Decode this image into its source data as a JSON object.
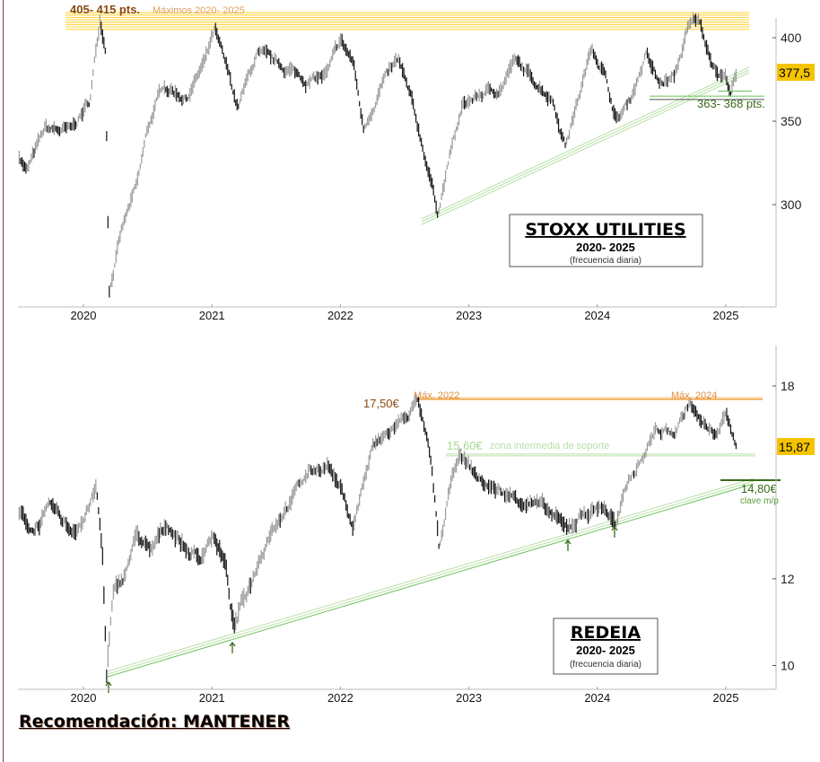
{
  "recommendation": "Recomendación: MANTENER",
  "chart_data": [
    {
      "type": "line",
      "title": "STOXX UTILITIES",
      "subtitle": "2020- 2025",
      "note": "(frecuencia diaria)",
      "x_ticks": [
        "2020",
        "2021",
        "2022",
        "2023",
        "2024",
        "2025"
      ],
      "y_ticks": [
        "400",
        "350",
        "300"
      ],
      "y_tick_values": [
        400,
        350,
        300
      ],
      "scale": "linear",
      "last_value_label": "377,5",
      "last_value": 377.5,
      "annotations": {
        "resistance_label": "405- 415 pts.",
        "resistance_note": "Máximos 2020- 2025",
        "resistance_range": [
          405,
          415
        ],
        "support_label": "363- 368 pts.",
        "support_range": [
          363,
          368
        ]
      },
      "series_waypoints": [
        [
          2019.5,
          330
        ],
        [
          2019.56,
          320
        ],
        [
          2019.7,
          345
        ],
        [
          2019.9,
          344
        ],
        [
          2020.05,
          362
        ],
        [
          2020.13,
          412
        ],
        [
          2020.17,
          395
        ],
        [
          2020.2,
          250
        ],
        [
          2020.3,
          285
        ],
        [
          2020.42,
          312
        ],
        [
          2020.5,
          345
        ],
        [
          2020.62,
          372
        ],
        [
          2020.8,
          364
        ],
        [
          2020.95,
          386
        ],
        [
          2021.02,
          404
        ],
        [
          2021.15,
          372
        ],
        [
          2021.2,
          358
        ],
        [
          2021.35,
          390
        ],
        [
          2021.5,
          384
        ],
        [
          2021.62,
          380
        ],
        [
          2021.75,
          374
        ],
        [
          2021.9,
          378
        ],
        [
          2022.0,
          398
        ],
        [
          2022.1,
          385
        ],
        [
          2022.18,
          345
        ],
        [
          2022.32,
          372
        ],
        [
          2022.45,
          386
        ],
        [
          2022.55,
          362
        ],
        [
          2022.65,
          332
        ],
        [
          2022.76,
          296
        ],
        [
          2022.86,
          332
        ],
        [
          2022.96,
          360
        ],
        [
          2023.1,
          366
        ],
        [
          2023.25,
          370
        ],
        [
          2023.35,
          386
        ],
        [
          2023.5,
          375
        ],
        [
          2023.65,
          364
        ],
        [
          2023.75,
          336
        ],
        [
          2023.86,
          366
        ],
        [
          2023.96,
          395
        ],
        [
          2024.05,
          380
        ],
        [
          2024.15,
          350
        ],
        [
          2024.25,
          362
        ],
        [
          2024.38,
          390
        ],
        [
          2024.48,
          372
        ],
        [
          2024.6,
          376
        ],
        [
          2024.7,
          404
        ],
        [
          2024.78,
          412
        ],
        [
          2024.86,
          394
        ],
        [
          2024.93,
          380
        ],
        [
          2025.0,
          376
        ],
        [
          2025.04,
          368
        ],
        [
          2025.08,
          377.5
        ]
      ]
    },
    {
      "type": "line",
      "title": "REDEIA",
      "subtitle": "2020- 2025",
      "note": "(frecuencia diaria)",
      "x_ticks": [
        "2020",
        "2021",
        "2022",
        "2023",
        "2024",
        "2025"
      ],
      "y_ticks": [
        "18",
        "12",
        "10"
      ],
      "y_tick_values": [
        18,
        12,
        10
      ],
      "scale": "log",
      "last_value_label": "15,87",
      "last_value": 15.87,
      "annotations": {
        "resistance_label": "17,50€",
        "resistance_value": 17.5,
        "max_2022_label": "Máx. 2022",
        "max_2024_label": "Máx. 2024",
        "support_mid_label": "15,60€",
        "support_mid_note": "zona intermedia de soporte",
        "support_mid_value": 15.6,
        "key_support_label": "14,80€",
        "key_support_note": "clave m/p",
        "key_support_value": 14.8
      },
      "series_waypoints": [
        [
          2019.5,
          13.8
        ],
        [
          2019.6,
          13.3
        ],
        [
          2019.75,
          13.9
        ],
        [
          2019.9,
          13.3
        ],
        [
          2020.0,
          13.6
        ],
        [
          2020.1,
          14.5
        ],
        [
          2020.15,
          12.5
        ],
        [
          2020.18,
          9.8
        ],
        [
          2020.23,
          11.5
        ],
        [
          2020.32,
          12.1
        ],
        [
          2020.42,
          13.2
        ],
        [
          2020.52,
          12.6
        ],
        [
          2020.65,
          13.5
        ],
        [
          2020.8,
          12.8
        ],
        [
          2020.9,
          12.5
        ],
        [
          2021.0,
          13.2
        ],
        [
          2021.1,
          12.4
        ],
        [
          2021.17,
          10.8
        ],
        [
          2021.3,
          11.9
        ],
        [
          2021.45,
          13.3
        ],
        [
          2021.6,
          14.1
        ],
        [
          2021.75,
          15.0
        ],
        [
          2021.9,
          15.3
        ],
        [
          2022.0,
          14.5
        ],
        [
          2022.1,
          13.4
        ],
        [
          2022.25,
          15.8
        ],
        [
          2022.4,
          16.4
        ],
        [
          2022.53,
          17.0
        ],
        [
          2022.6,
          17.5
        ],
        [
          2022.7,
          15.4
        ],
        [
          2022.77,
          12.7
        ],
        [
          2022.85,
          14.4
        ],
        [
          2022.92,
          15.6
        ],
        [
          2023.1,
          14.7
        ],
        [
          2023.3,
          14.3
        ],
        [
          2023.5,
          14.1
        ],
        [
          2023.65,
          13.7
        ],
        [
          2023.75,
          13.3
        ],
        [
          2023.9,
          13.8
        ],
        [
          2024.05,
          14.0
        ],
        [
          2024.15,
          13.4
        ],
        [
          2024.25,
          14.8
        ],
        [
          2024.35,
          15.5
        ],
        [
          2024.45,
          16.4
        ],
        [
          2024.6,
          16.3
        ],
        [
          2024.72,
          17.4
        ],
        [
          2024.8,
          16.7
        ],
        [
          2024.9,
          16.2
        ],
        [
          2025.0,
          16.9
        ],
        [
          2025.05,
          16.3
        ],
        [
          2025.08,
          15.87
        ]
      ]
    }
  ],
  "colors": {
    "resistance_band": "#ffd84a",
    "orange": "#f0a040",
    "green": "#6cc05a",
    "light_green": "#b8e0a8",
    "dark_green": "#3a6a1a",
    "label_box": "#f5c400"
  }
}
